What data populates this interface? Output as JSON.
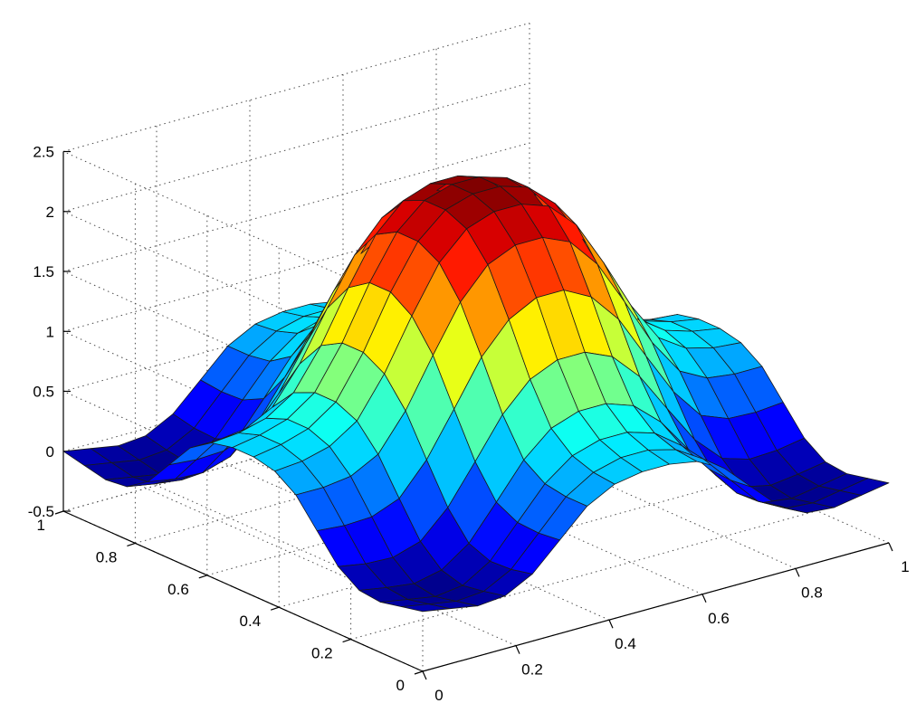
{
  "chart_data": {
    "type": "surface",
    "title": "",
    "xlabel": "",
    "ylabel": "",
    "zlabel": "",
    "xlim": [
      0,
      1
    ],
    "ylim": [
      0,
      1
    ],
    "zlim": [
      -0.5,
      2.5
    ],
    "grid": true,
    "colormap": "jet",
    "x_ticks": [
      {
        "value": 0,
        "label": "0"
      },
      {
        "value": 0.2,
        "label": "0.2"
      },
      {
        "value": 0.4,
        "label": "0.4"
      },
      {
        "value": 0.6,
        "label": "0.6"
      },
      {
        "value": 0.8,
        "label": "0.8"
      },
      {
        "value": 1,
        "label": "1"
      }
    ],
    "y_ticks": [
      {
        "value": 0,
        "label": "0"
      },
      {
        "value": 0.2,
        "label": "0.2"
      },
      {
        "value": 0.4,
        "label": "0.4"
      },
      {
        "value": 0.6,
        "label": "0.6"
      },
      {
        "value": 0.8,
        "label": "0.8"
      },
      {
        "value": 1,
        "label": "1"
      }
    ],
    "z_ticks": [
      {
        "value": -0.5,
        "label": "-0.5"
      },
      {
        "value": 0,
        "label": "0"
      },
      {
        "value": 0.5,
        "label": "0.5"
      },
      {
        "value": 1,
        "label": "1"
      },
      {
        "value": 1.5,
        "label": "1.5"
      },
      {
        "value": 2,
        "label": "2"
      },
      {
        "value": 2.5,
        "label": "2.5"
      }
    ],
    "x": [
      0,
      0.0588,
      0.1176,
      0.1765,
      0.2353,
      0.2941,
      0.3529,
      0.4118,
      0.4706,
      0.5294,
      0.5882,
      0.6471,
      0.7059,
      0.7647,
      0.8235,
      0.8824,
      0.9412,
      1
    ],
    "y": [
      0,
      0.0588,
      0.1176,
      0.1765,
      0.2353,
      0.2941,
      0.3529,
      0.4118,
      0.4706,
      0.5294,
      0.5882,
      0.6471,
      0.7059,
      0.7647,
      0.8235,
      0.8824,
      0.9412,
      1
    ],
    "z": [
      [
        0.0,
        -0.04,
        -0.08,
        -0.06,
        0.06,
        0.28,
        0.5,
        0.62,
        0.66,
        0.66,
        0.62,
        0.5,
        0.28,
        0.06,
        -0.06,
        -0.08,
        -0.04,
        0.0
      ],
      [
        -0.04,
        -0.08,
        -0.12,
        -0.1,
        0.02,
        0.26,
        0.5,
        0.64,
        0.7,
        0.7,
        0.64,
        0.5,
        0.26,
        0.02,
        -0.1,
        -0.12,
        -0.08,
        -0.04
      ],
      [
        -0.08,
        -0.12,
        -0.16,
        -0.13,
        0.01,
        0.27,
        0.53,
        0.7,
        0.77,
        0.77,
        0.7,
        0.53,
        0.27,
        0.01,
        -0.13,
        -0.16,
        -0.12,
        -0.08
      ],
      [
        -0.06,
        -0.1,
        -0.13,
        -0.08,
        0.08,
        0.36,
        0.65,
        0.85,
        0.93,
        0.93,
        0.85,
        0.65,
        0.36,
        0.08,
        -0.08,
        -0.13,
        -0.1,
        -0.06
      ],
      [
        0.06,
        0.02,
        0.01,
        0.08,
        0.3,
        0.62,
        0.95,
        1.18,
        1.28,
        1.28,
        1.18,
        0.95,
        0.62,
        0.3,
        0.08,
        0.01,
        0.02,
        0.06
      ],
      [
        0.28,
        0.26,
        0.27,
        0.36,
        0.62,
        0.98,
        1.35,
        1.6,
        1.72,
        1.72,
        1.6,
        1.35,
        0.98,
        0.62,
        0.36,
        0.27,
        0.26,
        0.28
      ],
      [
        0.5,
        0.5,
        0.53,
        0.65,
        0.95,
        1.35,
        1.73,
        1.98,
        2.08,
        2.08,
        1.98,
        1.73,
        1.35,
        0.95,
        0.65,
        0.53,
        0.5,
        0.5
      ],
      [
        0.62,
        0.64,
        0.7,
        0.85,
        1.18,
        1.6,
        1.98,
        2.2,
        2.28,
        2.28,
        2.2,
        1.98,
        1.6,
        1.18,
        0.85,
        0.7,
        0.64,
        0.62
      ],
      [
        0.66,
        0.7,
        0.77,
        0.93,
        1.28,
        1.72,
        2.08,
        2.28,
        2.35,
        2.35,
        2.28,
        2.08,
        1.72,
        1.28,
        0.93,
        0.77,
        0.7,
        0.66
      ],
      [
        0.66,
        0.7,
        0.77,
        0.93,
        1.28,
        1.72,
        2.08,
        2.28,
        2.35,
        2.35,
        2.28,
        2.08,
        1.72,
        1.28,
        0.93,
        0.77,
        0.7,
        0.66
      ],
      [
        0.62,
        0.64,
        0.7,
        0.85,
        1.18,
        1.6,
        1.98,
        2.2,
        2.28,
        2.28,
        2.2,
        1.98,
        1.6,
        1.18,
        0.85,
        0.7,
        0.64,
        0.62
      ],
      [
        0.5,
        0.5,
        0.53,
        0.65,
        0.95,
        1.35,
        1.73,
        1.98,
        2.08,
        2.08,
        1.98,
        1.73,
        1.35,
        0.95,
        0.65,
        0.53,
        0.5,
        0.5
      ],
      [
        0.28,
        0.26,
        0.27,
        0.36,
        0.62,
        0.98,
        1.35,
        1.6,
        1.72,
        1.72,
        1.6,
        1.35,
        0.98,
        0.62,
        0.36,
        0.27,
        0.26,
        0.28
      ],
      [
        0.06,
        0.02,
        0.01,
        0.08,
        0.3,
        0.62,
        0.95,
        1.18,
        1.28,
        1.28,
        1.18,
        0.95,
        0.62,
        0.3,
        0.08,
        0.01,
        0.02,
        0.06
      ],
      [
        -0.06,
        -0.1,
        -0.13,
        -0.08,
        0.08,
        0.36,
        0.65,
        0.85,
        0.93,
        0.93,
        0.85,
        0.65,
        0.36,
        0.08,
        -0.08,
        -0.13,
        -0.1,
        -0.06
      ],
      [
        -0.08,
        -0.12,
        -0.16,
        -0.13,
        0.01,
        0.27,
        0.53,
        0.7,
        0.77,
        0.77,
        0.7,
        0.53,
        0.27,
        0.01,
        -0.13,
        -0.16,
        -0.12,
        -0.08
      ],
      [
        -0.04,
        -0.08,
        -0.12,
        -0.1,
        0.02,
        0.26,
        0.5,
        0.64,
        0.7,
        0.7,
        0.64,
        0.5,
        0.26,
        0.02,
        -0.1,
        -0.12,
        -0.08,
        -0.04
      ],
      [
        0.0,
        -0.04,
        -0.08,
        -0.06,
        0.06,
        0.28,
        0.5,
        0.62,
        0.66,
        0.66,
        0.62,
        0.5,
        0.28,
        0.06,
        -0.06,
        -0.08,
        -0.04,
        0.0
      ]
    ]
  }
}
